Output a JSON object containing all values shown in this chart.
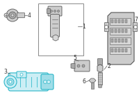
{
  "bg_color": "#ffffff",
  "line_color": "#555555",
  "highlight_color": "#29b6c8",
  "highlight_fill": "#cceef5",
  "text_color": "#333333",
  "gray_fill": "#d8d8d8",
  "gray_dark": "#aaaaaa",
  "gray_mid": "#cccccc",
  "box_border": "#888888",
  "figsize": [
    2.0,
    1.47
  ],
  "dpi": 100,
  "xlim": [
    0,
    200
  ],
  "ylim": [
    0,
    147
  ]
}
